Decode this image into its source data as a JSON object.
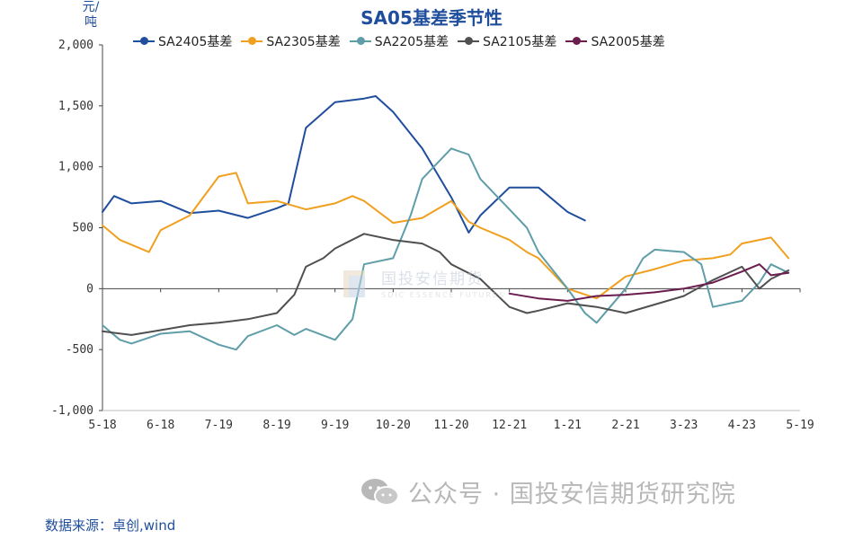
{
  "chart_data": {
    "type": "line",
    "title": "SA05基差季节性",
    "ylabel": "元/吨",
    "ylim": [
      -1000,
      2000
    ],
    "yticks": [
      -1000,
      -500,
      0,
      500,
      1000,
      1500,
      2000
    ],
    "ytick_labels": [
      "-1,000",
      "-500",
      "0",
      "500",
      "1,000",
      "1,500",
      "2,000"
    ],
    "x_categories": [
      "5-18",
      "6-18",
      "7-19",
      "8-19",
      "9-19",
      "10-20",
      "11-20",
      "12-21",
      "1-21",
      "2-21",
      "3-23",
      "4-23",
      "5-19"
    ],
    "xlim": [
      0,
      12
    ],
    "legend_position": "top",
    "series": [
      {
        "name": "SA2405基差",
        "color": "#1f4e9c",
        "x": [
          0,
          0.2,
          0.5,
          1,
          1.5,
          2,
          2.5,
          3,
          3.2,
          3.5,
          4,
          4.5,
          4.7,
          5,
          5.5,
          6,
          6.3,
          6.5,
          7,
          7.5,
          8,
          8.3
        ],
        "y": [
          630,
          760,
          700,
          720,
          620,
          640,
          580,
          660,
          700,
          1320,
          1530,
          1560,
          1580,
          1450,
          1150,
          750,
          460,
          600,
          830,
          830,
          630,
          560
        ]
      },
      {
        "name": "SA2305基差",
        "color": "#f0a01e",
        "x": [
          0,
          0.3,
          0.8,
          1,
          1.5,
          2,
          2.3,
          2.5,
          3,
          3.5,
          4,
          4.3,
          4.5,
          5,
          5.5,
          6,
          6.3,
          6.5,
          7,
          7.3,
          7.5,
          8,
          8.5,
          9,
          9.5,
          10,
          10.5,
          10.8,
          11,
          11.5,
          11.8
        ],
        "y": [
          520,
          400,
          300,
          480,
          600,
          920,
          950,
          700,
          720,
          650,
          700,
          760,
          720,
          540,
          580,
          720,
          550,
          500,
          400,
          300,
          250,
          0,
          -80,
          100,
          160,
          230,
          250,
          280,
          370,
          420,
          250
        ]
      },
      {
        "name": "SA2205基差",
        "color": "#5f9ea8",
        "x": [
          0,
          0.3,
          0.5,
          1,
          1.5,
          2,
          2.3,
          2.5,
          3,
          3.3,
          3.5,
          4,
          4.3,
          4.5,
          5,
          5.3,
          5.5,
          6,
          6.3,
          6.5,
          7,
          7.3,
          7.5,
          8,
          8.3,
          8.5,
          9,
          9.3,
          9.5,
          10,
          10.3,
          10.5,
          11,
          11.3,
          11.5,
          11.8
        ],
        "y": [
          -300,
          -420,
          -450,
          -370,
          -350,
          -460,
          -500,
          -390,
          -300,
          -380,
          -330,
          -420,
          -250,
          200,
          250,
          600,
          900,
          1150,
          1100,
          900,
          650,
          500,
          300,
          0,
          -200,
          -280,
          0,
          250,
          320,
          300,
          200,
          -150,
          -100,
          50,
          200,
          130
        ]
      },
      {
        "name": "SA2105基差",
        "color": "#505050",
        "x": [
          0,
          0.5,
          1,
          1.5,
          2,
          2.5,
          3,
          3.3,
          3.5,
          3.8,
          4,
          4.5,
          5,
          5.5,
          5.8,
          6,
          6.5,
          7,
          7.3,
          7.5,
          8,
          8.5,
          9,
          9.5,
          10,
          10.5,
          11,
          11.3,
          11.5,
          11.8
        ],
        "y": [
          -350,
          -380,
          -340,
          -300,
          -280,
          -250,
          -200,
          -50,
          180,
          250,
          330,
          450,
          400,
          370,
          300,
          200,
          80,
          -150,
          -200,
          -180,
          -120,
          -150,
          -200,
          -130,
          -60,
          70,
          180,
          0,
          80,
          150
        ]
      },
      {
        "name": "SA2005基差",
        "color": "#6b1d4f",
        "x": [
          7,
          7.5,
          8,
          8.5,
          9,
          9.5,
          10,
          10.5,
          11,
          11.3,
          11.5,
          11.8
        ],
        "y": [
          -40,
          -80,
          -100,
          -60,
          -50,
          -30,
          0,
          50,
          140,
          200,
          110,
          130
        ]
      }
    ],
    "watermark": "国投安信期货",
    "watermark_sub": "SDIC ESSENCE FUTURES"
  },
  "footer": {
    "source": "数据来源：卓创,wind",
    "brand": "公众号 · 国投安信期货研究院",
    "wechat_icon": "wechat-icon"
  }
}
